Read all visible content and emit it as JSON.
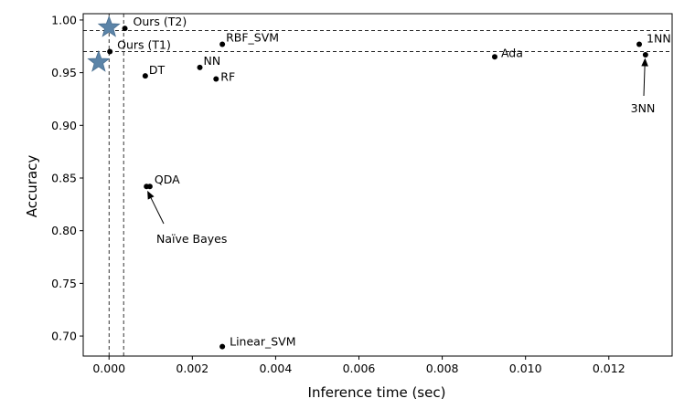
{
  "chart_data": {
    "type": "scatter",
    "title": "",
    "xlabel": "Inference time (sec)",
    "ylabel": "Accuracy",
    "xlim": [
      -0.00062,
      0.01352
    ],
    "ylim": [
      0.681,
      1.006
    ],
    "grid": false,
    "x_ticks": [
      0.0,
      0.002,
      0.004,
      0.006,
      0.008,
      0.01,
      0.012
    ],
    "x_tick_labels": [
      "0.000",
      "0.002",
      "0.004",
      "0.006",
      "0.008",
      "0.010",
      "0.012"
    ],
    "y_ticks": [
      0.7,
      0.75,
      0.8,
      0.85,
      0.9,
      0.95,
      1.0
    ],
    "y_tick_labels": [
      "0.70",
      "0.75",
      "0.80",
      "0.85",
      "0.90",
      "0.95",
      "1.00"
    ],
    "marker_color": "#000000",
    "star_color": "#5b84a8",
    "points": [
      {
        "label": "Ours (T2)",
        "x": 0.00038,
        "y": 0.992
      },
      {
        "label": "Ours (T1)",
        "x": 2e-05,
        "y": 0.97
      },
      {
        "label": "RBF_SVM",
        "x": 0.00272,
        "y": 0.977
      },
      {
        "label": "DT",
        "x": 0.00087,
        "y": 0.947
      },
      {
        "label": "NN",
        "x": 0.00218,
        "y": 0.955
      },
      {
        "label": "RF",
        "x": 0.00257,
        "y": 0.944
      },
      {
        "label": "Ada",
        "x": 0.00926,
        "y": 0.965
      },
      {
        "label": "1NN",
        "x": 0.01273,
        "y": 0.977
      },
      {
        "label": "3NN",
        "x": 0.01288,
        "y": 0.967
      },
      {
        "label": "QDA",
        "x": 0.00098,
        "y": 0.842
      },
      {
        "label": "Naïve Bayes",
        "x": 0.0009,
        "y": 0.842
      },
      {
        "label": "Linear_SVM",
        "x": 0.00272,
        "y": 0.69
      }
    ],
    "stars": [
      {
        "x": 0.0,
        "y": 0.993
      },
      {
        "x": -0.00025,
        "y": 0.96
      }
    ],
    "reference_lines": {
      "horizontal": [
        0.99,
        0.97
      ],
      "vertical": [
        0.0,
        0.00035
      ]
    },
    "annotations": [
      {
        "text": "Naïve Bayes",
        "target_x": 0.00092,
        "target_y": 0.838
      },
      {
        "text": "3NN",
        "target_x": 0.01287,
        "target_y": 0.964
      }
    ]
  }
}
